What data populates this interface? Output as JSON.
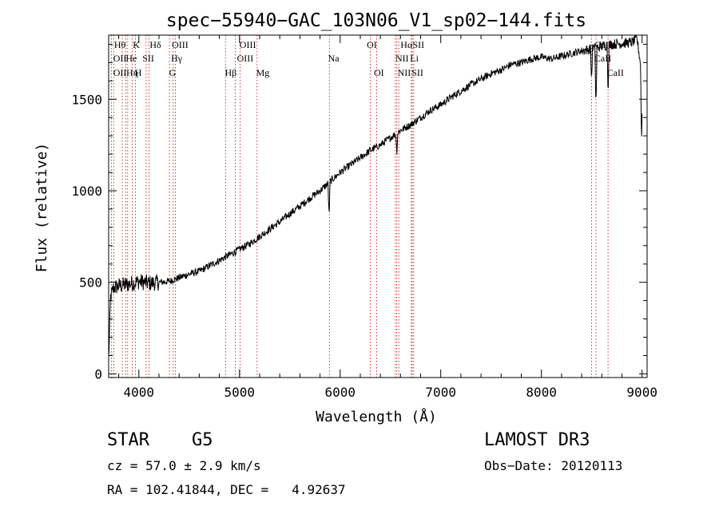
{
  "chart_data": {
    "type": "line",
    "title": "spec−55940−GAC_103N06_V1_sp02−144.fits",
    "xlabel": "Wavelength (Å)",
    "ylabel": "Flux (relative)",
    "xlim": [
      3700,
      9050
    ],
    "ylim": [
      -20,
      1850
    ],
    "x_ticks": [
      4000,
      5000,
      6000,
      7000,
      8000,
      9000
    ],
    "y_ticks": [
      0,
      500,
      1000,
      1500
    ],
    "x_tick_labels": [
      "4000",
      "5000",
      "6000",
      "7000",
      "8000",
      "9000"
    ],
    "y_tick_labels": [
      "0",
      "500",
      "1000",
      "1500"
    ],
    "grid": false,
    "series": [
      {
        "name": "flux",
        "x": [
          3700,
          3720,
          3750,
          3800,
          3900,
          4000,
          4100,
          4200,
          4300,
          4400,
          4500,
          4600,
          4700,
          4800,
          4900,
          5000,
          5100,
          5200,
          5300,
          5400,
          5500,
          5600,
          5700,
          5800,
          5900,
          6000,
          6100,
          6200,
          6300,
          6400,
          6500,
          6600,
          6700,
          6800,
          6900,
          7000,
          7100,
          7200,
          7300,
          7400,
          7500,
          7600,
          7700,
          7800,
          7900,
          8000,
          8100,
          8200,
          8300,
          8400,
          8500,
          8600,
          8700,
          8800,
          8900,
          8950,
          9000
        ],
        "y": [
          80,
          420,
          470,
          480,
          490,
          505,
          495,
          500,
          505,
          525,
          545,
          560,
          590,
          620,
          650,
          680,
          710,
          750,
          790,
          830,
          875,
          915,
          960,
          1000,
          1050,
          1100,
          1140,
          1180,
          1220,
          1250,
          1290,
          1330,
          1360,
          1400,
          1440,
          1470,
          1510,
          1545,
          1580,
          1610,
          1640,
          1660,
          1690,
          1700,
          1720,
          1730,
          1720,
          1735,
          1750,
          1765,
          1775,
          1790,
          1800,
          1805,
          1810,
          1830,
          1630
        ]
      }
    ],
    "absorption_features": [
      {
        "x": 5890,
        "depth": 190
      },
      {
        "x": 6563,
        "depth": 110
      },
      {
        "x": 8498,
        "depth": 180
      },
      {
        "x": 8542,
        "depth": 340
      },
      {
        "x": 8662,
        "depth": 260
      },
      {
        "x": 8995,
        "depth": 400
      }
    ],
    "line_markers": [
      {
        "x": 3727,
        "labels": [
          "OII",
          "OII"
        ]
      },
      {
        "x": 3750,
        "labels": [
          "Hθ"
        ]
      },
      {
        "x": 3835,
        "labels": [
          "Hη"
        ]
      },
      {
        "x": 3869,
        "labels": [
          "NeIII"
        ]
      },
      {
        "x": 3889,
        "labels": [
          "He"
        ]
      },
      {
        "x": 3934,
        "labels": [
          "K"
        ]
      },
      {
        "x": 3967,
        "labels": [
          "H"
        ]
      },
      {
        "x": 4072,
        "labels": [
          "SII"
        ]
      },
      {
        "x": 4102,
        "labels": [
          "Hδ"
        ]
      },
      {
        "x": 4304,
        "labels": [
          "G"
        ]
      },
      {
        "x": 4341,
        "labels": [
          "Hγ"
        ]
      },
      {
        "x": 4363,
        "labels": [
          "OIII"
        ]
      },
      {
        "x": 4861,
        "labels": [
          "Hβ"
        ]
      },
      {
        "x": 4959,
        "labels": [
          "OIII"
        ]
      },
      {
        "x": 5007,
        "labels": [
          "OIII"
        ]
      },
      {
        "x": 5175,
        "labels": [
          "Mg"
        ]
      },
      {
        "x": 5893,
        "labels": [
          "Na"
        ]
      },
      {
        "x": 6300,
        "labels": [
          "OI"
        ]
      },
      {
        "x": 6363,
        "labels": [
          "OI"
        ]
      },
      {
        "x": 6548,
        "labels": [
          "NII"
        ]
      },
      {
        "x": 6563,
        "labels": [
          "Hα"
        ]
      },
      {
        "x": 6583,
        "labels": [
          "NII"
        ]
      },
      {
        "x": 6707,
        "labels": [
          "Li"
        ]
      },
      {
        "x": 6716,
        "labels": [
          "SII"
        ]
      },
      {
        "x": 6731,
        "labels": [
          "SII"
        ]
      },
      {
        "x": 8498,
        "labels": [
          "CaII"
        ]
      },
      {
        "x": 8542,
        "labels": [
          "CaII"
        ]
      },
      {
        "x": 8662,
        "labels": [
          "CaII"
        ]
      }
    ],
    "line_label_text": [
      {
        "x": 3755,
        "row": 0,
        "text": "Hθ"
      },
      {
        "x": 3940,
        "row": 0,
        "text": "K"
      },
      {
        "x": 4108,
        "row": 0,
        "text": "Hδ"
      },
      {
        "x": 4328,
        "row": 0,
        "text": "OIII"
      },
      {
        "x": 5000,
        "row": 0,
        "text": "OIII"
      },
      {
        "x": 6265,
        "row": 0,
        "text": "OI"
      },
      {
        "x": 6600,
        "row": 0,
        "text": "Hα"
      },
      {
        "x": 6720,
        "row": 0,
        "text": "SII"
      },
      {
        "x": 8530,
        "row": 0,
        "text": "CaII"
      },
      {
        "x": 3745,
        "row": 1,
        "text": "OII"
      },
      {
        "x": 3870,
        "row": 1,
        "text": "He"
      },
      {
        "x": 4035,
        "row": 1,
        "text": "SII"
      },
      {
        "x": 4320,
        "row": 1,
        "text": "Hγ"
      },
      {
        "x": 4975,
        "row": 1,
        "text": "OIII"
      },
      {
        "x": 5880,
        "row": 1,
        "text": "Na"
      },
      {
        "x": 6550,
        "row": 1,
        "text": "NII"
      },
      {
        "x": 6695,
        "row": 1,
        "text": "Li"
      },
      {
        "x": 8525,
        "row": 1,
        "text": "CaII"
      },
      {
        "x": 3745,
        "row": 2,
        "text": "OII"
      },
      {
        "x": 3875,
        "row": 2,
        "text": "Hη"
      },
      {
        "x": 3960,
        "row": 2,
        "text": "H"
      },
      {
        "x": 4300,
        "row": 2,
        "text": "G"
      },
      {
        "x": 4855,
        "row": 2,
        "text": "Hβ"
      },
      {
        "x": 5165,
        "row": 2,
        "text": "Mg"
      },
      {
        "x": 6335,
        "row": 2,
        "text": "OI"
      },
      {
        "x": 6570,
        "row": 2,
        "text": "NII"
      },
      {
        "x": 6710,
        "row": 2,
        "text": "SII"
      },
      {
        "x": 8650,
        "row": 2,
        "text": "CaII"
      }
    ]
  },
  "info": {
    "object_class": "STAR",
    "subclass": "G5",
    "survey": "LAMOST DR3",
    "redshift": "cz = 57.0 ± 2.9 km/s",
    "obs_date": "Obs−Date: 20120113",
    "coords": "RA = 102.41844, DEC =   4.92637"
  }
}
